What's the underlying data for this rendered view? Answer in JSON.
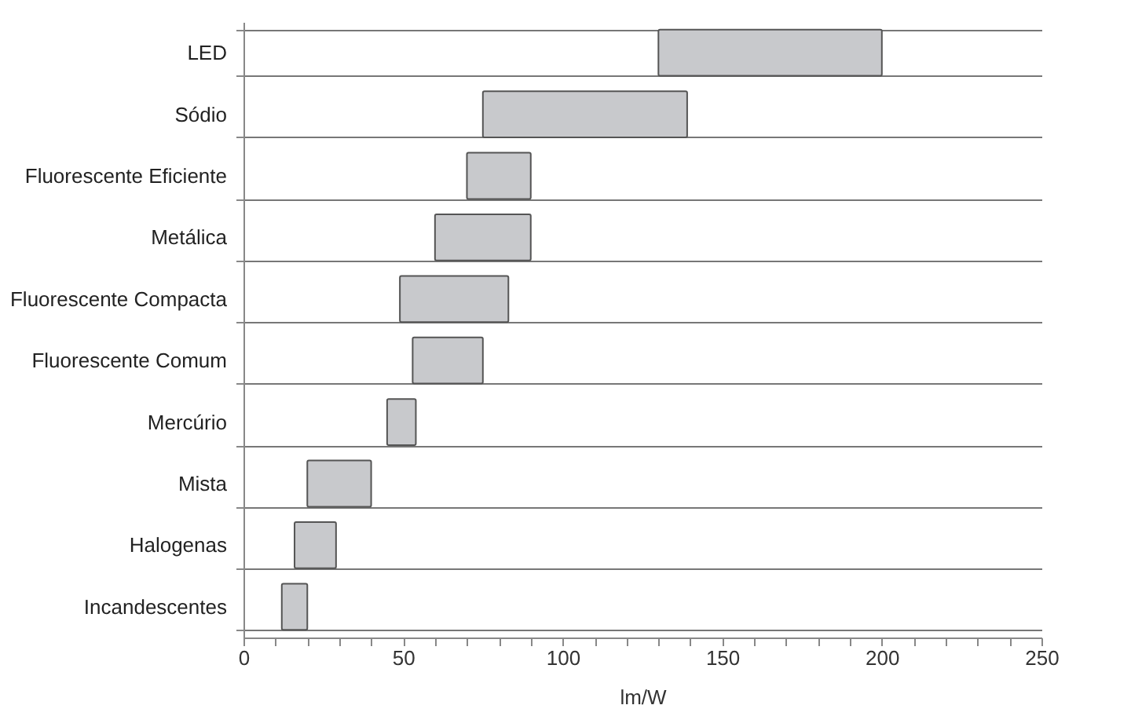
{
  "chart_data": {
    "type": "bar",
    "orientation": "horizontal",
    "xlabel": "lm/W",
    "categories": [
      "LED",
      "Sódio",
      "Fluorescente Eficiente",
      "Metálica",
      "Fluorescente Compacta",
      "Fluorescente Comum",
      "Mercúrio",
      "Mista",
      "Halogenas",
      "Incandescentes"
    ],
    "base": [
      130,
      75,
      70,
      60,
      49,
      53,
      45,
      20,
      16,
      12
    ],
    "values": [
      70,
      64,
      20,
      30,
      34,
      22,
      9,
      20,
      13,
      8
    ],
    "color": "#c8c9cc",
    "xlim": [
      0,
      250
    ],
    "xticks": [
      0,
      {
        "value": 10,
        "label": null
      },
      {
        "value": 20,
        "label": null
      },
      {
        "value": 30,
        "label": null
      },
      {
        "value": 40,
        "label": null
      },
      50,
      {
        "value": 60,
        "label": null
      },
      {
        "value": 70,
        "label": null
      },
      {
        "value": 80,
        "label": null
      },
      {
        "value": 90,
        "label": null
      },
      100,
      {
        "value": 110,
        "label": null
      },
      {
        "value": 120,
        "label": null
      },
      {
        "value": 130,
        "label": null
      },
      {
        "value": 140,
        "label": null
      },
      150,
      {
        "value": 160,
        "label": null
      },
      {
        "value": 170,
        "label": null
      },
      {
        "value": 180,
        "label": null
      },
      {
        "value": 190,
        "label": null
      },
      200,
      {
        "value": 210,
        "label": null
      },
      {
        "value": 220,
        "label": null
      },
      {
        "value": 230,
        "label": null
      },
      {
        "value": 240,
        "label": null
      },
      250
    ],
    "grid": "y"
  }
}
